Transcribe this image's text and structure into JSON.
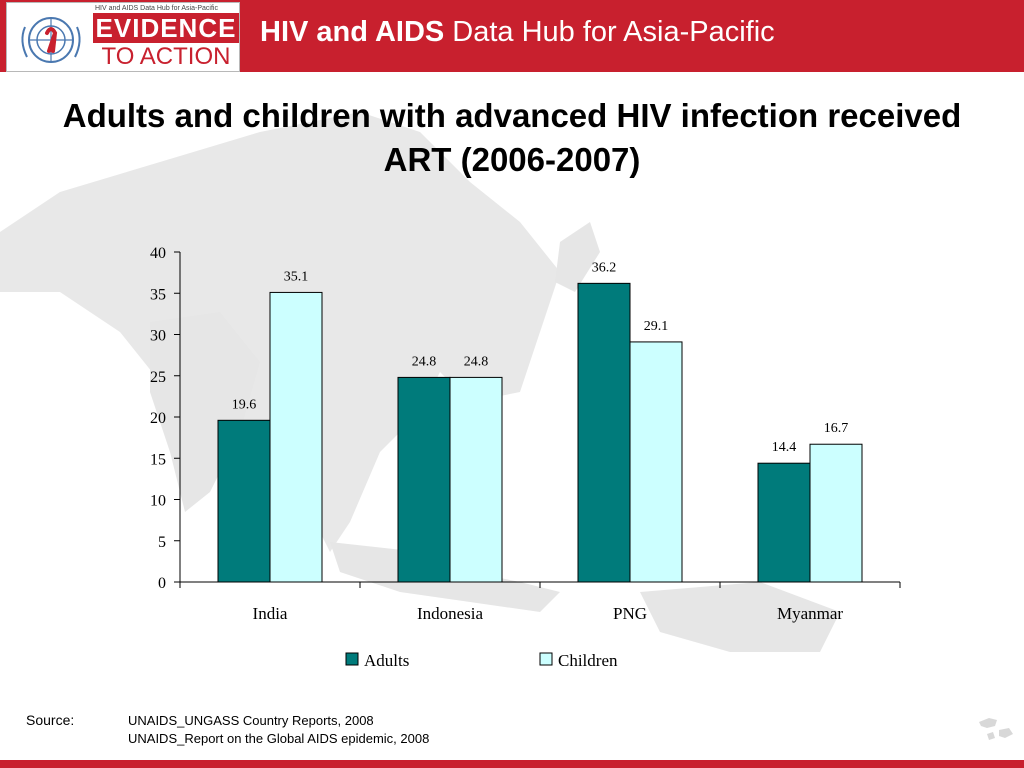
{
  "header": {
    "title_bold": "HIV and AIDS",
    "title_rest": " Data Hub for Asia-Pacific",
    "logo_tagline": "HIV and AIDS Data Hub for Asia-Pacific",
    "logo_line1": "EVIDENCE",
    "logo_line2": "TO ACTION"
  },
  "slide": {
    "title": "Adults and children with advanced HIV infection received ART (2006-2007)"
  },
  "chart_data": {
    "type": "bar",
    "categories": [
      "India",
      "Indonesia",
      "PNG",
      "Myanmar"
    ],
    "series": [
      {
        "name": "Adults",
        "values": [
          19.6,
          24.8,
          36.2,
          14.4
        ],
        "color": "#007b7b"
      },
      {
        "name": "Children",
        "values": [
          35.1,
          24.8,
          29.1,
          16.7
        ],
        "color": "#ccffff"
      }
    ],
    "ylim": [
      0,
      40
    ],
    "yticks": [
      0,
      5,
      10,
      15,
      20,
      25,
      30,
      35,
      40
    ],
    "grid": false,
    "legend": "bottom"
  },
  "source": {
    "label": "Source:",
    "lines": [
      "UNAIDS_UNGASS Country Reports, 2008",
      "UNAIDS_Report on the Global AIDS epidemic, 2008"
    ]
  },
  "colors": {
    "brand_red": "#c8202e",
    "map_land": "#e6e6e6"
  }
}
